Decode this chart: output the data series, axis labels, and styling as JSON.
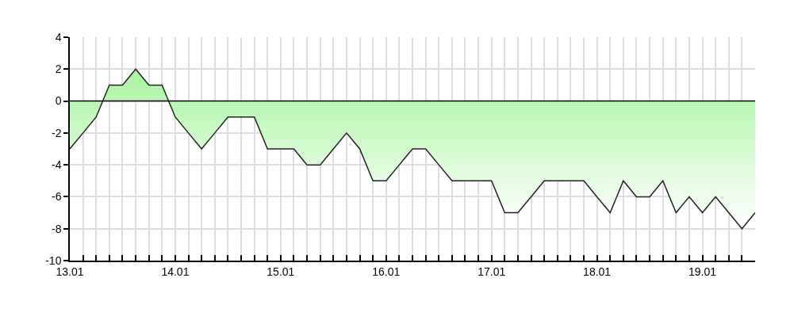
{
  "chart_data": {
    "type": "area",
    "categories": [
      "13.01",
      null,
      null,
      null,
      null,
      null,
      null,
      null,
      "14.01",
      null,
      null,
      null,
      null,
      null,
      null,
      null,
      "15.01",
      null,
      null,
      null,
      null,
      null,
      null,
      null,
      "16.01",
      null,
      null,
      null,
      null,
      null,
      null,
      null,
      "17.01",
      null,
      null,
      null,
      null,
      null,
      null,
      null,
      "18.01",
      null,
      null,
      null,
      null,
      null,
      null,
      null,
      "19.01",
      null,
      null,
      null,
      null
    ],
    "series": [
      {
        "color": "#a8f5a0",
        "values": [
          -3,
          -2,
          -1,
          1,
          1,
          2,
          1,
          1,
          -1,
          -2,
          -3,
          -2,
          -1,
          -1,
          -1,
          -3,
          -3,
          -3,
          -4,
          -4,
          -3,
          -2,
          -3,
          -5,
          -5,
          -4,
          -3,
          -3,
          -4,
          -5,
          -5,
          -5,
          -5,
          -7,
          -7,
          -6,
          -5,
          -5,
          -5,
          -5,
          -6,
          -7,
          -5,
          -6,
          -6,
          -5,
          -7,
          -6,
          -7,
          -6,
          -7,
          -8,
          -7
        ]
      }
    ],
    "ylim": [
      -10,
      4
    ],
    "yticks": [
      -10,
      -8,
      -6,
      -4,
      -2,
      0,
      2,
      4
    ],
    "ref_lines": [
      {
        "axis": "y",
        "value": 0,
        "color": "#000000"
      }
    ],
    "grid": true
  }
}
